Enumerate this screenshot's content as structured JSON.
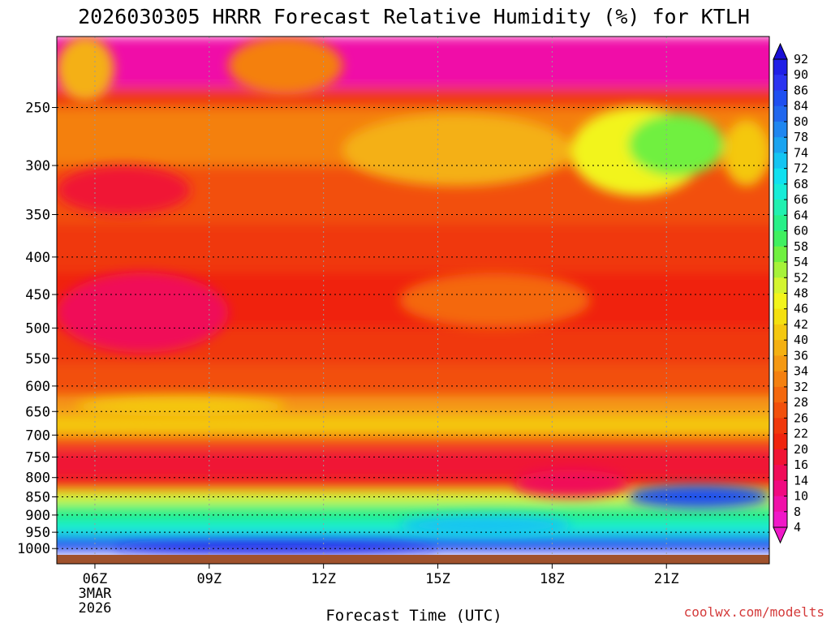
{
  "chart_data": {
    "type": "heatmap",
    "title": "2026030305 HRRR Forecast Relative Humidity (%) for KTLH",
    "xlabel": "Forecast Time (UTC)",
    "ylabel": "",
    "y_ticks": [
      "250",
      "300",
      "350",
      "400",
      "450",
      "500",
      "550",
      "600",
      "650",
      "700",
      "750",
      "800",
      "850",
      "900",
      "950",
      "1000"
    ],
    "x_ticks": [
      {
        "label": "06Z",
        "sub1": "3MAR",
        "sub2": "2026"
      },
      {
        "label": "09Z",
        "sub1": "",
        "sub2": ""
      },
      {
        "label": "12Z",
        "sub1": "",
        "sub2": ""
      },
      {
        "label": "15Z",
        "sub1": "",
        "sub2": ""
      },
      {
        "label": "18Z",
        "sub1": "",
        "sub2": ""
      },
      {
        "label": "21Z",
        "sub1": "",
        "sub2": ""
      }
    ],
    "x_range": [
      5,
      23.7
    ],
    "y_range_hPa": [
      1020,
      200
    ],
    "colorbar_levels": [
      "92",
      "90",
      "86",
      "84",
      "80",
      "78",
      "74",
      "72",
      "68",
      "66",
      "64",
      "60",
      "58",
      "54",
      "52",
      "48",
      "46",
      "42",
      "40",
      "36",
      "34",
      "32",
      "28",
      "26",
      "22",
      "20",
      "16",
      "14",
      "10",
      "8",
      "4"
    ],
    "colorbar_colors": [
      "#1a0fd6",
      "#1f1fe6",
      "#2a33f0",
      "#1e4ff0",
      "#2067ee",
      "#1f86f0",
      "#1aa3f0",
      "#14c4f2",
      "#10e0f0",
      "#16ecd8",
      "#22f0b0",
      "#28f088",
      "#40f060",
      "#70f040",
      "#a6f23a",
      "#d4f430",
      "#f2f41c",
      "#f4e010",
      "#f4c810",
      "#f4b012",
      "#f49812",
      "#f48010",
      "#f4680e",
      "#f2500c",
      "#f0380c",
      "#f0240e",
      "#f01434",
      "#f00c58",
      "#f00a80",
      "#f010a8",
      "#f018c8"
    ],
    "bands": [
      {
        "from": 200,
        "to": 235,
        "rh": 8
      },
      {
        "from": 235,
        "to": 250,
        "rh": 22
      },
      {
        "from": 250,
        "to": 300,
        "rh": 30
      },
      {
        "from": 300,
        "to": 360,
        "rh": 26
      },
      {
        "from": 360,
        "to": 420,
        "rh": 22
      },
      {
        "from": 420,
        "to": 500,
        "rh": 18
      },
      {
        "from": 500,
        "to": 560,
        "rh": 22
      },
      {
        "from": 560,
        "to": 620,
        "rh": 26
      },
      {
        "from": 620,
        "to": 660,
        "rh": 34
      },
      {
        "from": 660,
        "to": 700,
        "rh": 38
      },
      {
        "from": 700,
        "to": 730,
        "rh": 26
      },
      {
        "from": 730,
        "to": 800,
        "rh": 16
      },
      {
        "from": 800,
        "to": 835,
        "rh": 20
      },
      {
        "from": 835,
        "to": 870,
        "rh": 48
      },
      {
        "from": 870,
        "to": 920,
        "rh": 60
      },
      {
        "from": 920,
        "to": 960,
        "rh": 66
      },
      {
        "from": 960,
        "to": 990,
        "rh": 80
      },
      {
        "from": 990,
        "to": 1010,
        "rh": 86
      }
    ],
    "features": [
      {
        "t0": 5,
        "t1": 6.5,
        "p0": 200,
        "p1": 245,
        "rh": 36
      },
      {
        "t0": 9.5,
        "t1": 12.5,
        "p0": 200,
        "p1": 240,
        "rh": 32
      },
      {
        "t0": 12.5,
        "t1": 18.5,
        "p0": 255,
        "p1": 320,
        "rh": 36
      },
      {
        "t0": 18.5,
        "t1": 22,
        "p0": 250,
        "p1": 330,
        "rh": 46
      },
      {
        "t0": 20,
        "t1": 22.5,
        "p0": 255,
        "p1": 310,
        "rh": 54
      },
      {
        "t0": 22.5,
        "t1": 23.7,
        "p0": 260,
        "p1": 320,
        "rh": 40
      },
      {
        "t0": 5,
        "t1": 8.5,
        "p0": 300,
        "p1": 350,
        "rh": 16
      },
      {
        "t0": 5,
        "t1": 9.5,
        "p0": 420,
        "p1": 540,
        "rh": 14
      },
      {
        "t0": 14,
        "t1": 19,
        "p0": 420,
        "p1": 500,
        "rh": 28
      },
      {
        "t0": 5.5,
        "t1": 11,
        "p0": 620,
        "p1": 660,
        "rh": 40
      },
      {
        "t0": 17,
        "t1": 20,
        "p0": 780,
        "p1": 850,
        "rh": 14
      },
      {
        "t0": 20,
        "t1": 23.7,
        "p0": 820,
        "p1": 880,
        "rh": 84
      },
      {
        "t0": 6.5,
        "t1": 15,
        "p0": 985,
        "p1": 1012,
        "rh": 90
      },
      {
        "t0": 14,
        "t1": 18.5,
        "p0": 900,
        "p1": 960,
        "rh": 72
      }
    ]
  },
  "credit": "coolwx.com/modelts"
}
